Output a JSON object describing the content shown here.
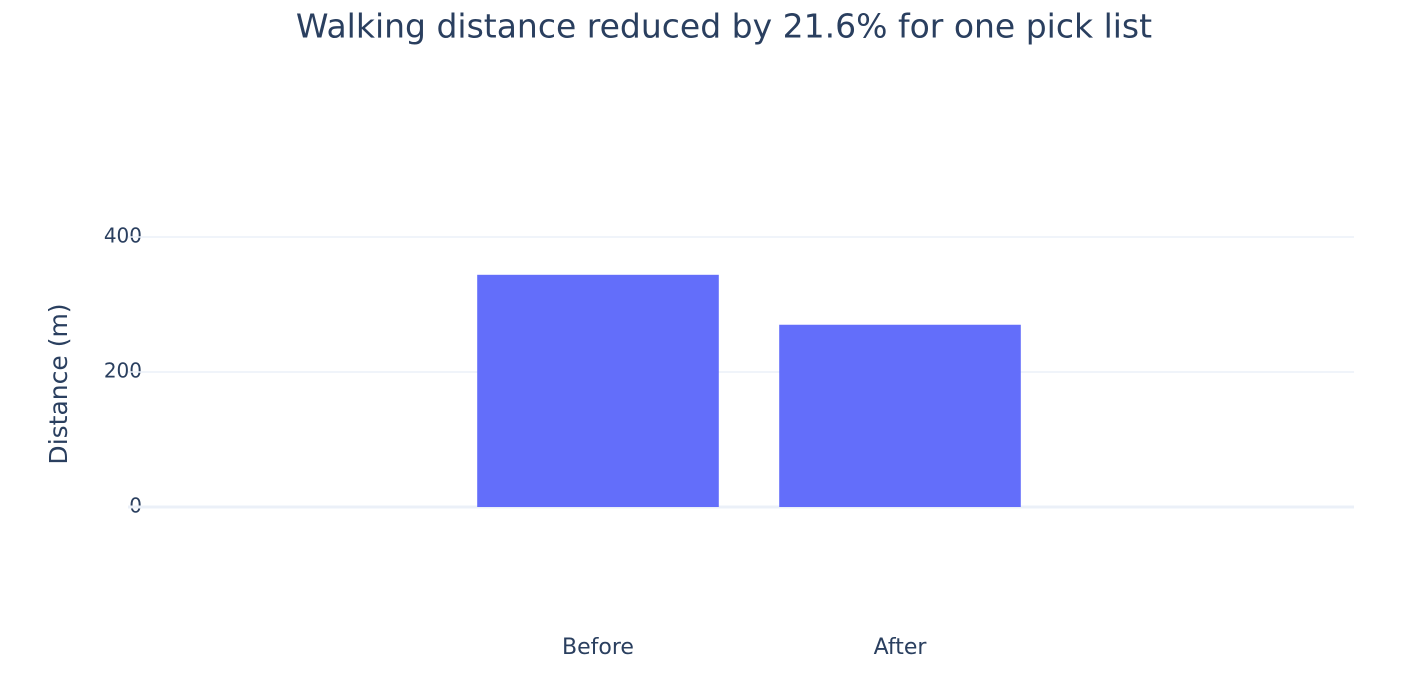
{
  "chart_data": {
    "type": "bar",
    "title": "Walking distance reduced by 21.6% for one pick list",
    "y_label": "Distance (m)",
    "categories": [
      "Before",
      "After"
    ],
    "values": [
      344,
      270
    ],
    "color": "#636efa",
    "ylim": [
      -180,
      600
    ],
    "yticks": [
      0,
      200,
      400
    ],
    "grid": true
  }
}
